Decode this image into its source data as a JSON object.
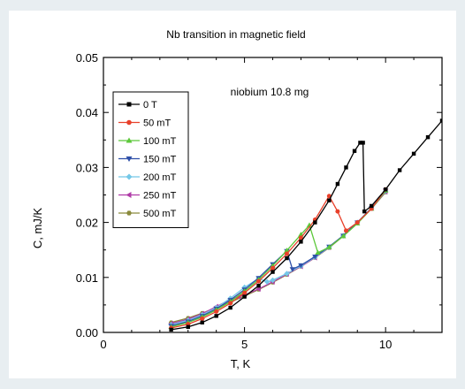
{
  "chart_data": {
    "type": "line",
    "title": "Nb transition in magnetic field",
    "annotation": "niobium 10.8 mg",
    "xlabel": "T, K",
    "ylabel": "C, mJ/K",
    "xlim": [
      0,
      12
    ],
    "ylim": [
      0,
      0.05
    ],
    "xticks": [
      "0",
      "5",
      "10"
    ],
    "yticks": [
      "0.00",
      "0.01",
      "0.02",
      "0.03",
      "0.04",
      "0.05"
    ],
    "xtick_values": [
      0,
      5,
      10
    ],
    "ytick_values": [
      0,
      0.01,
      0.02,
      0.03,
      0.04,
      0.05
    ],
    "grid": false,
    "legend_position": "top-left",
    "series": [
      {
        "name": "0 T",
        "color": "#000000",
        "marker": "square",
        "x": [
          2.4,
          3.0,
          3.5,
          4.0,
          4.5,
          5.0,
          5.5,
          6.0,
          6.5,
          7.0,
          7.5,
          8.0,
          8.3,
          8.6,
          8.9,
          9.1,
          9.2,
          9.25,
          9.5,
          10.0,
          10.5,
          11.0,
          11.5,
          12.0
        ],
        "y": [
          0.0005,
          0.001,
          0.0018,
          0.003,
          0.0045,
          0.0065,
          0.0085,
          0.011,
          0.0135,
          0.0165,
          0.02,
          0.024,
          0.027,
          0.03,
          0.033,
          0.0345,
          0.0345,
          0.022,
          0.023,
          0.026,
          0.0295,
          0.0325,
          0.0355,
          0.0385
        ]
      },
      {
        "name": "50 mT",
        "color": "#e8402a",
        "marker": "circle",
        "x": [
          2.4,
          3.0,
          3.5,
          4.0,
          4.5,
          5.0,
          5.5,
          6.0,
          6.5,
          7.0,
          7.5,
          8.0,
          8.3,
          8.6,
          9.0,
          9.5,
          10.0
        ],
        "y": [
          0.0008,
          0.0015,
          0.0025,
          0.0038,
          0.0053,
          0.0072,
          0.0093,
          0.0117,
          0.0143,
          0.0172,
          0.0205,
          0.0248,
          0.022,
          0.0185,
          0.02,
          0.0225,
          0.026
        ]
      },
      {
        "name": "100 mT",
        "color": "#5cc83a",
        "marker": "triangle",
        "x": [
          2.4,
          3.0,
          3.5,
          4.0,
          4.5,
          5.0,
          5.5,
          6.0,
          6.5,
          7.0,
          7.3,
          7.6,
          8.0,
          8.5,
          9.0,
          9.5,
          10.0
        ],
        "y": [
          0.001,
          0.0018,
          0.0028,
          0.0041,
          0.0056,
          0.0075,
          0.0096,
          0.0121,
          0.0149,
          0.0178,
          0.0195,
          0.0145,
          0.0155,
          0.0175,
          0.0198,
          0.0225,
          0.0258
        ]
      },
      {
        "name": "150 mT",
        "color": "#2e4fa8",
        "marker": "tri-down",
        "x": [
          2.4,
          3.0,
          3.5,
          4.0,
          4.5,
          5.0,
          5.5,
          6.0,
          6.5,
          6.7,
          7.0,
          7.5,
          8.0,
          8.5,
          9.0,
          9.5,
          10.0
        ],
        "y": [
          0.0012,
          0.002,
          0.003,
          0.0043,
          0.0059,
          0.0078,
          0.0099,
          0.0124,
          0.0148,
          0.0115,
          0.0122,
          0.0138,
          0.0156,
          0.0176,
          0.02,
          0.0226,
          0.0258
        ]
      },
      {
        "name": "200 mT",
        "color": "#74c8e8",
        "marker": "diamond",
        "x": [
          2.4,
          3.0,
          3.5,
          4.0,
          4.5,
          5.0,
          5.5,
          5.8,
          6.0,
          6.5,
          7.0,
          7.5,
          8.0,
          8.5,
          9.0,
          9.5,
          10.0
        ],
        "y": [
          0.0014,
          0.0022,
          0.0032,
          0.0045,
          0.0062,
          0.0082,
          0.0098,
          0.0092,
          0.0095,
          0.0107,
          0.0121,
          0.0137,
          0.0155,
          0.0176,
          0.02,
          0.0226,
          0.0257
        ]
      },
      {
        "name": "250 mT",
        "color": "#b03ca8",
        "marker": "tri-left",
        "x": [
          2.4,
          3.0,
          3.5,
          4.0,
          4.5,
          4.8,
          5.0,
          5.5,
          6.0,
          6.5,
          7.0,
          7.5,
          8.0,
          8.5,
          9.0,
          9.5,
          10.0
        ],
        "y": [
          0.0016,
          0.0024,
          0.0034,
          0.0047,
          0.006,
          0.0065,
          0.0068,
          0.0079,
          0.0092,
          0.0106,
          0.012,
          0.0136,
          0.0155,
          0.0176,
          0.02,
          0.0226,
          0.0256
        ]
      },
      {
        "name": "500 mT",
        "color": "#8a8a3c",
        "marker": "hexagon",
        "x": [
          2.4,
          3.0,
          3.5,
          4.0,
          4.5,
          5.0,
          5.5,
          6.0,
          6.5,
          7.0,
          7.5,
          8.0,
          8.5,
          9.0,
          9.5,
          10.0
        ],
        "y": [
          0.0018,
          0.0026,
          0.0035,
          0.0045,
          0.0055,
          0.0066,
          0.0078,
          0.0091,
          0.0105,
          0.012,
          0.0136,
          0.0154,
          0.0175,
          0.0199,
          0.0225,
          0.0255
        ]
      }
    ]
  }
}
